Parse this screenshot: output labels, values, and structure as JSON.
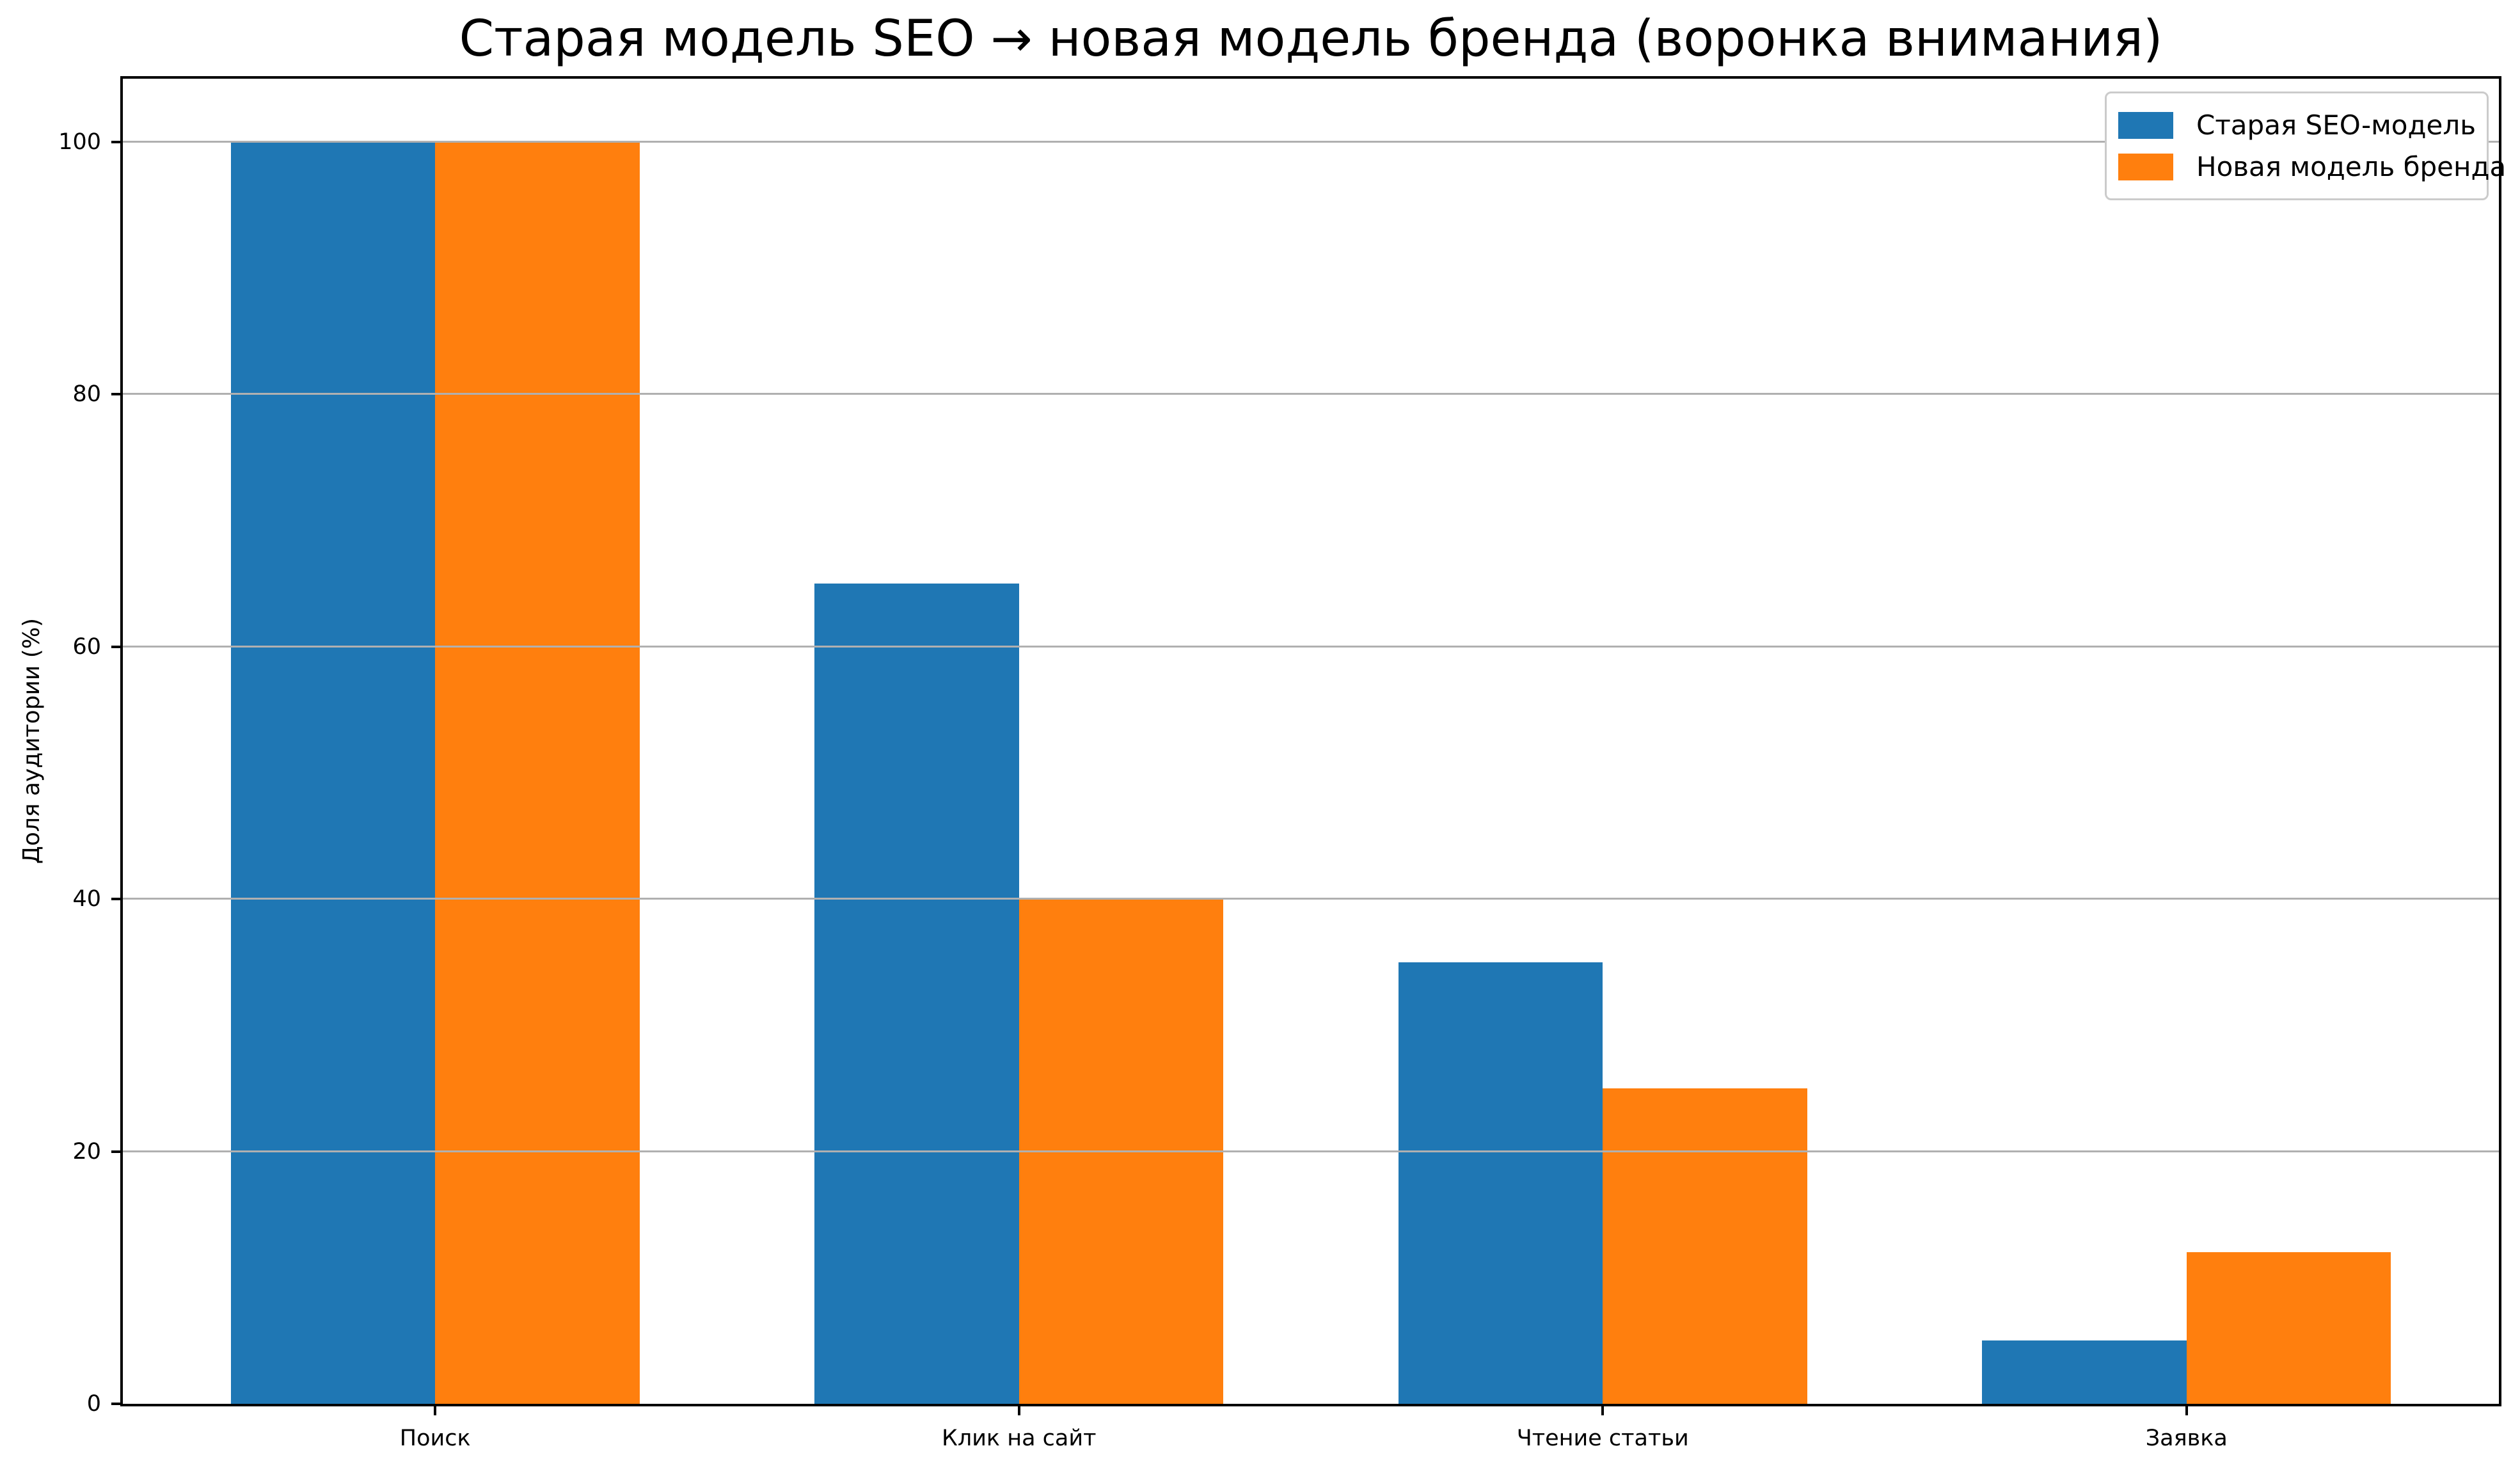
{
  "chart_data": {
    "type": "bar",
    "title": "Старая модель SEO → новая модель бренда (воронка внимания)",
    "ylabel": "Доля аудитории (%)",
    "xlabel": "",
    "categories": [
      "Поиск",
      "Клик на сайт",
      "Чтение статьи",
      "Заявка"
    ],
    "series": [
      {
        "name": "Старая SEO-модель",
        "color": "#1f77b4",
        "values": [
          100,
          65,
          35,
          5
        ]
      },
      {
        "name": "Новая модель бренда",
        "color": "#ff7f0e",
        "values": [
          100,
          40,
          25,
          12
        ]
      }
    ],
    "ylim": [
      0,
      105
    ],
    "yticks": [
      0,
      20,
      40,
      60,
      80,
      100
    ],
    "xlim": [
      -0.535,
      3.535
    ],
    "bar_width": 0.35,
    "grid": "horizontal",
    "grid_color": "#b0b0b0",
    "grid_above_bars": true,
    "axis_color": "#000000",
    "legend_position": "top-right",
    "legend_framed": true
  }
}
